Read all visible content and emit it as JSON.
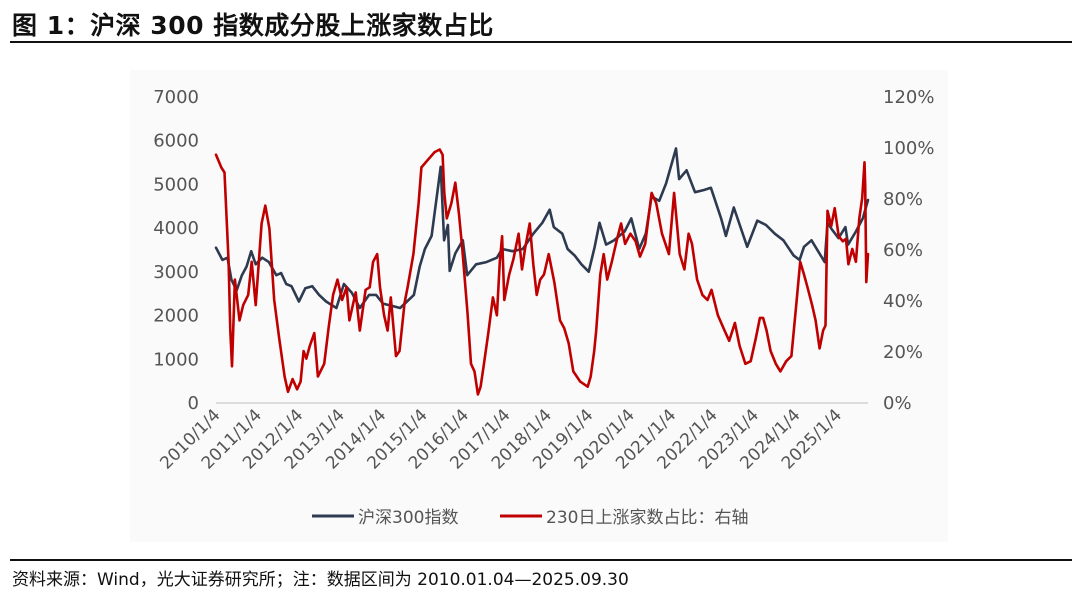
{
  "figure": {
    "title": "图 1：沪深 300 指数成分股上涨家数占比",
    "footnote": "资料来源：Wind，光大证券研究所；注：数据区间为 2010.01.04—2025.09.30"
  },
  "chart_data": {
    "type": "line",
    "title": "图 1：沪深 300 指数成分股上涨家数占比",
    "x_tick_labels": [
      "2010/1/4",
      "2011/1/4",
      "2012/1/4",
      "2013/1/4",
      "2014/1/4",
      "2015/1/4",
      "2016/1/4",
      "2017/1/4",
      "2018/1/4",
      "2019/1/4",
      "2020/1/4",
      "2021/1/4",
      "2022/1/4",
      "2023/1/4",
      "2024/1/4",
      "2025/1/4"
    ],
    "x_range": [
      "2010-01-04",
      "2025-09-30"
    ],
    "y_left": {
      "ticks": [
        0,
        1000,
        2000,
        3000,
        4000,
        5000,
        6000,
        7000
      ],
      "range": [
        0,
        7000
      ]
    },
    "y_right": {
      "ticks": [
        "0%",
        "20%",
        "40%",
        "60%",
        "80%",
        "100%",
        "120%"
      ],
      "range": [
        0,
        1.2
      ]
    },
    "legend_position": "bottom",
    "grid": false,
    "colors": {
      "hs300": "#2e3a50",
      "pct": "#c00000"
    },
    "series": [
      {
        "name": "沪深300指数",
        "axis": "left",
        "points": [
          [
            "2010-01-04",
            3530
          ],
          [
            "2010-03-01",
            3250
          ],
          [
            "2010-04-15",
            3300
          ],
          [
            "2010-05-20",
            2800
          ],
          [
            "2010-07-05",
            2550
          ],
          [
            "2010-08-20",
            2900
          ],
          [
            "2010-10-01",
            3100
          ],
          [
            "2010-11-10",
            3450
          ],
          [
            "2010-12-20",
            3150
          ],
          [
            "2011-02-15",
            3300
          ],
          [
            "2011-04-15",
            3200
          ],
          [
            "2011-06-20",
            2900
          ],
          [
            "2011-08-01",
            2950
          ],
          [
            "2011-09-15",
            2700
          ],
          [
            "2011-11-01",
            2650
          ],
          [
            "2012-01-05",
            2300
          ],
          [
            "2012-03-01",
            2600
          ],
          [
            "2012-05-01",
            2650
          ],
          [
            "2012-07-01",
            2450
          ],
          [
            "2012-09-01",
            2300
          ],
          [
            "2012-11-30",
            2150
          ],
          [
            "2013-02-05",
            2700
          ],
          [
            "2013-04-15",
            2500
          ],
          [
            "2013-06-25",
            2150
          ],
          [
            "2013-09-15",
            2450
          ],
          [
            "2013-11-15",
            2450
          ],
          [
            "2014-01-15",
            2250
          ],
          [
            "2014-04-01",
            2200
          ],
          [
            "2014-06-15",
            2150
          ],
          [
            "2014-08-15",
            2300
          ],
          [
            "2014-10-15",
            2450
          ],
          [
            "2014-12-05",
            3100
          ],
          [
            "2015-01-20",
            3500
          ],
          [
            "2015-03-20",
            3800
          ],
          [
            "2015-06-08",
            5380
          ],
          [
            "2015-07-08",
            3700
          ],
          [
            "2015-08-10",
            4050
          ],
          [
            "2015-08-26",
            3000
          ],
          [
            "2015-10-15",
            3400
          ],
          [
            "2015-12-20",
            3700
          ],
          [
            "2016-01-28",
            2900
          ],
          [
            "2016-04-15",
            3150
          ],
          [
            "2016-07-15",
            3200
          ],
          [
            "2016-10-15",
            3300
          ],
          [
            "2016-11-30",
            3500
          ],
          [
            "2017-03-01",
            3450
          ],
          [
            "2017-06-01",
            3500
          ],
          [
            "2017-09-01",
            3850
          ],
          [
            "2017-11-20",
            4100
          ],
          [
            "2018-01-24",
            4400
          ],
          [
            "2018-03-01",
            4000
          ],
          [
            "2018-05-15",
            3850
          ],
          [
            "2018-07-01",
            3500
          ],
          [
            "2018-09-01",
            3350
          ],
          [
            "2018-10-30",
            3150
          ],
          [
            "2019-01-03",
            2980
          ],
          [
            "2019-02-25",
            3550
          ],
          [
            "2019-04-08",
            4100
          ],
          [
            "2019-06-05",
            3600
          ],
          [
            "2019-08-15",
            3700
          ],
          [
            "2019-11-15",
            3900
          ],
          [
            "2020-01-13",
            4200
          ],
          [
            "2020-03-23",
            3500
          ],
          [
            "2020-05-20",
            3850
          ],
          [
            "2020-07-10",
            4700
          ],
          [
            "2020-09-15",
            4600
          ],
          [
            "2020-11-15",
            5000
          ],
          [
            "2021-02-10",
            5800
          ],
          [
            "2021-03-10",
            5100
          ],
          [
            "2021-05-15",
            5300
          ],
          [
            "2021-07-28",
            4800
          ],
          [
            "2021-10-15",
            4850
          ],
          [
            "2021-12-15",
            4900
          ],
          [
            "2022-03-15",
            4200
          ],
          [
            "2022-04-26",
            3800
          ],
          [
            "2022-07-05",
            4450
          ],
          [
            "2022-10-31",
            3550
          ],
          [
            "2023-01-28",
            4150
          ],
          [
            "2023-04-15",
            4050
          ],
          [
            "2023-07-01",
            3850
          ],
          [
            "2023-09-15",
            3700
          ],
          [
            "2023-12-15",
            3350
          ],
          [
            "2024-02-05",
            3250
          ],
          [
            "2024-03-15",
            3550
          ],
          [
            "2024-05-20",
            3700
          ],
          [
            "2024-09-13",
            3200
          ],
          [
            "2024-10-08",
            4100
          ],
          [
            "2024-11-15",
            3950
          ],
          [
            "2025-01-13",
            3750
          ],
          [
            "2025-03-15",
            4000
          ],
          [
            "2025-04-08",
            3600
          ],
          [
            "2025-06-15",
            3900
          ],
          [
            "2025-08-15",
            4200
          ],
          [
            "2025-09-30",
            4620
          ]
        ]
      },
      {
        "name": "230日上涨家数占比：右轴",
        "axis": "right",
        "points": [
          [
            "2010-01-04",
            0.97
          ],
          [
            "2010-02-20",
            0.92
          ],
          [
            "2010-03-20",
            0.9
          ],
          [
            "2010-04-25",
            0.55
          ],
          [
            "2010-05-10",
            0.28
          ],
          [
            "2010-05-25",
            0.14
          ],
          [
            "2010-06-20",
            0.48
          ],
          [
            "2010-07-30",
            0.32
          ],
          [
            "2010-09-01",
            0.38
          ],
          [
            "2010-10-15",
            0.42
          ],
          [
            "2010-11-15",
            0.55
          ],
          [
            "2010-12-20",
            0.38
          ],
          [
            "2011-02-10",
            0.7
          ],
          [
            "2011-03-15",
            0.77
          ],
          [
            "2011-04-20",
            0.68
          ],
          [
            "2011-06-01",
            0.4
          ],
          [
            "2011-07-15",
            0.25
          ],
          [
            "2011-09-01",
            0.1
          ],
          [
            "2011-10-01",
            0.04
          ],
          [
            "2011-11-10",
            0.09
          ],
          [
            "2011-12-20",
            0.05
          ],
          [
            "2012-01-20",
            0.08
          ],
          [
            "2012-02-15",
            0.2
          ],
          [
            "2012-03-10",
            0.17
          ],
          [
            "2012-04-10",
            0.22
          ],
          [
            "2012-05-20",
            0.27
          ],
          [
            "2012-06-20",
            0.1
          ],
          [
            "2012-08-15",
            0.15
          ],
          [
            "2012-09-25",
            0.3
          ],
          [
            "2012-11-01",
            0.42
          ],
          [
            "2012-12-10",
            0.48
          ],
          [
            "2013-01-20",
            0.4
          ],
          [
            "2013-02-28",
            0.45
          ],
          [
            "2013-03-25",
            0.32
          ],
          [
            "2013-05-20",
            0.43
          ],
          [
            "2013-06-25",
            0.28
          ],
          [
            "2013-08-15",
            0.44
          ],
          [
            "2013-09-20",
            0.45
          ],
          [
            "2013-10-20",
            0.55
          ],
          [
            "2013-11-25",
            0.58
          ],
          [
            "2013-12-20",
            0.45
          ],
          [
            "2014-01-25",
            0.34
          ],
          [
            "2014-02-25",
            0.28
          ],
          [
            "2014-03-25",
            0.41
          ],
          [
            "2014-05-10",
            0.18
          ],
          [
            "2014-06-10",
            0.2
          ],
          [
            "2014-07-25",
            0.39
          ],
          [
            "2014-08-20",
            0.45
          ],
          [
            "2014-10-10",
            0.58
          ],
          [
            "2014-11-25",
            0.78
          ],
          [
            "2014-12-20",
            0.92
          ],
          [
            "2015-02-15",
            0.95
          ],
          [
            "2015-04-15",
            0.98
          ],
          [
            "2015-05-30",
            0.99
          ],
          [
            "2015-06-25",
            0.97
          ],
          [
            "2015-07-10",
            0.82
          ],
          [
            "2015-08-01",
            0.72
          ],
          [
            "2015-09-10",
            0.78
          ],
          [
            "2015-10-15",
            0.86
          ],
          [
            "2015-11-15",
            0.74
          ],
          [
            "2015-12-15",
            0.6
          ],
          [
            "2016-01-30",
            0.35
          ],
          [
            "2016-03-01",
            0.15
          ],
          [
            "2016-04-01",
            0.12
          ],
          [
            "2016-05-01",
            0.03
          ],
          [
            "2016-05-25",
            0.06
          ],
          [
            "2016-06-20",
            0.14
          ],
          [
            "2016-08-01",
            0.27
          ],
          [
            "2016-09-10",
            0.41
          ],
          [
            "2016-10-15",
            0.34
          ],
          [
            "2016-11-10",
            0.55
          ],
          [
            "2016-11-30",
            0.65
          ],
          [
            "2016-12-20",
            0.4
          ],
          [
            "2017-02-01",
            0.5
          ],
          [
            "2017-03-10",
            0.56
          ],
          [
            "2017-04-25",
            0.66
          ],
          [
            "2017-05-25",
            0.52
          ],
          [
            "2017-06-20",
            0.6
          ],
          [
            "2017-08-01",
            0.7
          ],
          [
            "2017-09-01",
            0.54
          ],
          [
            "2017-10-01",
            0.42
          ],
          [
            "2017-11-01",
            0.48
          ],
          [
            "2017-12-05",
            0.5
          ],
          [
            "2018-01-15",
            0.58
          ],
          [
            "2018-03-05",
            0.47
          ],
          [
            "2018-04-25",
            0.32
          ],
          [
            "2018-06-01",
            0.29
          ],
          [
            "2018-07-10",
            0.23
          ],
          [
            "2018-08-20",
            0.12
          ],
          [
            "2018-10-20",
            0.08
          ],
          [
            "2018-12-25",
            0.06
          ],
          [
            "2019-01-20",
            0.1
          ],
          [
            "2019-02-20",
            0.2
          ],
          [
            "2019-03-10",
            0.28
          ],
          [
            "2019-04-15",
            0.5
          ],
          [
            "2019-05-15",
            0.58
          ],
          [
            "2019-06-15",
            0.48
          ],
          [
            "2019-07-25",
            0.55
          ],
          [
            "2019-09-10",
            0.64
          ],
          [
            "2019-10-15",
            0.7
          ],
          [
            "2019-11-20",
            0.62
          ],
          [
            "2020-01-05",
            0.66
          ],
          [
            "2020-02-20",
            0.63
          ],
          [
            "2020-03-30",
            0.57
          ],
          [
            "2020-05-15",
            0.62
          ],
          [
            "2020-07-10",
            0.82
          ],
          [
            "2020-08-20",
            0.78
          ],
          [
            "2020-10-10",
            0.66
          ],
          [
            "2020-12-10",
            0.58
          ],
          [
            "2021-01-25",
            0.82
          ],
          [
            "2021-03-15",
            0.58
          ],
          [
            "2021-04-25",
            0.52
          ],
          [
            "2021-06-01",
            0.66
          ],
          [
            "2021-07-01",
            0.62
          ],
          [
            "2021-08-15",
            0.48
          ],
          [
            "2021-10-01",
            0.42
          ],
          [
            "2021-11-15",
            0.4
          ],
          [
            "2021-12-20",
            0.44
          ],
          [
            "2022-02-15",
            0.34
          ],
          [
            "2022-04-15",
            0.28
          ],
          [
            "2022-05-25",
            0.24
          ],
          [
            "2022-07-15",
            0.31
          ],
          [
            "2022-08-25",
            0.22
          ],
          [
            "2022-10-15",
            0.15
          ],
          [
            "2022-12-01",
            0.16
          ],
          [
            "2023-01-15",
            0.25
          ],
          [
            "2023-02-20",
            0.33
          ],
          [
            "2023-03-20",
            0.33
          ],
          [
            "2023-04-20",
            0.28
          ],
          [
            "2023-05-25",
            0.2
          ],
          [
            "2023-07-10",
            0.15
          ],
          [
            "2023-08-20",
            0.12
          ],
          [
            "2023-10-10",
            0.16
          ],
          [
            "2023-11-25",
            0.18
          ],
          [
            "2024-01-10",
            0.4
          ],
          [
            "2024-02-10",
            0.55
          ],
          [
            "2024-03-15",
            0.5
          ],
          [
            "2024-04-15",
            0.45
          ],
          [
            "2024-05-25",
            0.38
          ],
          [
            "2024-06-25",
            0.32
          ],
          [
            "2024-07-30",
            0.21
          ],
          [
            "2024-08-30",
            0.28
          ],
          [
            "2024-09-20",
            0.3
          ],
          [
            "2024-10-08",
            0.75
          ],
          [
            "2024-11-10",
            0.69
          ],
          [
            "2024-12-10",
            0.76
          ],
          [
            "2025-01-15",
            0.65
          ],
          [
            "2025-02-20",
            0.63
          ],
          [
            "2025-03-20",
            0.64
          ],
          [
            "2025-04-10",
            0.54
          ],
          [
            "2025-05-15",
            0.6
          ],
          [
            "2025-06-15",
            0.55
          ],
          [
            "2025-07-15",
            0.72
          ],
          [
            "2025-08-10",
            0.8
          ],
          [
            "2025-08-30",
            0.94
          ],
          [
            "2025-09-05",
            0.85
          ],
          [
            "2025-09-15",
            0.47
          ],
          [
            "2025-09-30",
            0.58
          ]
        ]
      }
    ]
  }
}
